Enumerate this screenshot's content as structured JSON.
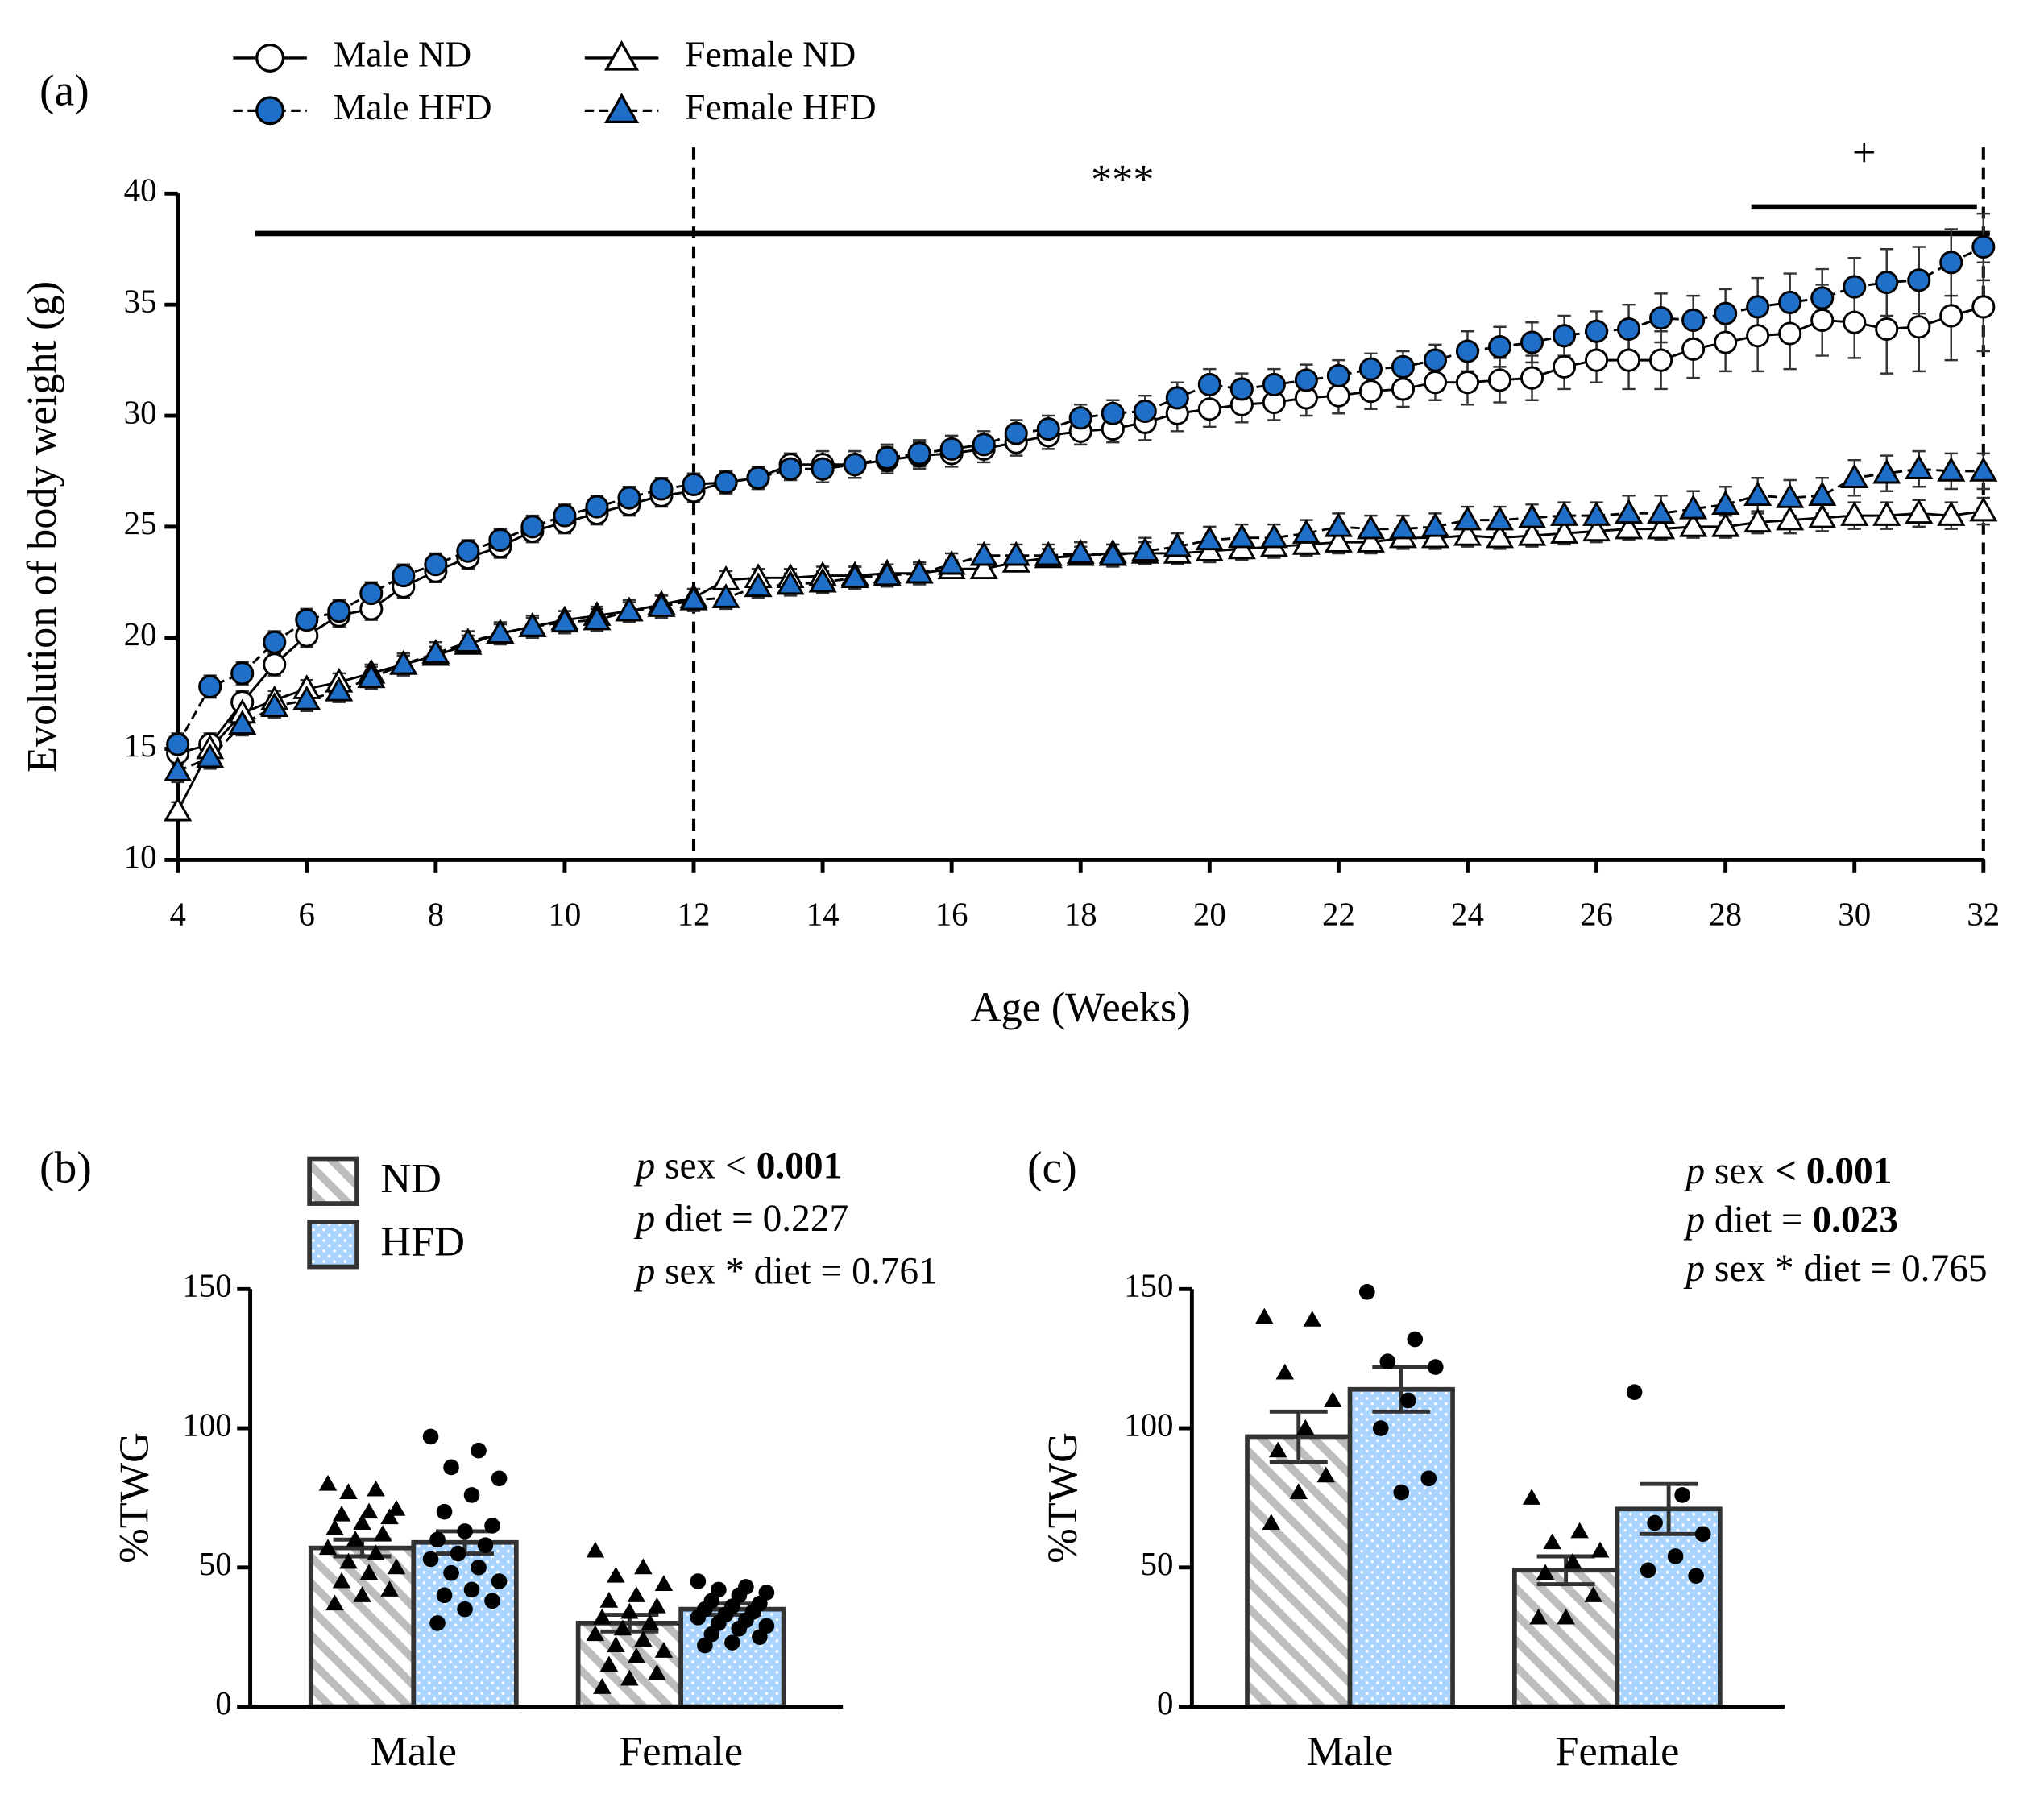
{
  "chart_data": [
    {
      "type": "line",
      "label": "(a)",
      "xlabel": "Age (Weeks)",
      "ylabel": "Evolution of body weight (g)",
      "x": [
        4,
        4.5,
        5,
        5.5,
        6,
        6.5,
        7,
        7.5,
        8,
        8.5,
        9,
        9.5,
        10,
        10.5,
        11,
        11.5,
        12,
        12.5,
        13,
        13.5,
        14,
        14.5,
        15,
        15.5,
        16,
        16.5,
        17,
        17.5,
        18,
        18.5,
        19,
        19.5,
        20,
        20.5,
        21,
        21.5,
        22,
        22.5,
        23,
        23.5,
        24,
        24.5,
        25,
        25.5,
        26,
        26.5,
        27,
        27.5,
        28,
        28.5,
        29,
        29.5,
        30,
        30.5,
        31,
        31.5,
        32
      ],
      "xlim": [
        4,
        32
      ],
      "xticks": [
        4,
        6,
        8,
        10,
        12,
        14,
        16,
        18,
        20,
        22,
        24,
        26,
        28,
        30,
        32
      ],
      "ylim": [
        10,
        40
      ],
      "yticks": [
        10,
        15,
        20,
        25,
        30,
        35,
        40
      ],
      "vlines": [
        12,
        32
      ],
      "sig_bars": [
        {
          "label": "***",
          "x": [
            5.2,
            32.1
          ],
          "y": 38.2
        },
        {
          "label": "+",
          "x": [
            28.4,
            31.9
          ],
          "y": 39.4
        }
      ],
      "series": [
        {
          "name": "Male ND",
          "marker": "circle",
          "color": "#ffffff",
          "line_style": "solid",
          "values": [
            14.8,
            15.2,
            17.1,
            18.8,
            20.1,
            21.0,
            21.3,
            22.3,
            23.0,
            23.6,
            24.1,
            24.8,
            25.2,
            25.6,
            26.0,
            26.4,
            26.6,
            27.0,
            27.2,
            27.8,
            27.8,
            27.8,
            28.0,
            28.2,
            28.3,
            28.5,
            28.8,
            29.1,
            29.3,
            29.4,
            29.7,
            30.1,
            30.3,
            30.5,
            30.6,
            30.8,
            30.9,
            31.1,
            31.2,
            31.5,
            31.5,
            31.6,
            31.7,
            32.2,
            32.5,
            32.5,
            32.5,
            33.0,
            33.3,
            33.6,
            33.7,
            34.3,
            34.2,
            33.9,
            34.0,
            34.5,
            34.9
          ],
          "errors": [
            0.5,
            0.5,
            0.5,
            0.5,
            0.5,
            0.5,
            0.5,
            0.5,
            0.5,
            0.5,
            0.5,
            0.5,
            0.5,
            0.5,
            0.5,
            0.5,
            0.5,
            0.5,
            0.5,
            0.5,
            0.6,
            0.6,
            0.6,
            0.6,
            0.6,
            0.6,
            0.6,
            0.6,
            0.6,
            0.6,
            0.8,
            0.8,
            0.8,
            0.8,
            0.8,
            0.8,
            0.8,
            0.8,
            0.8,
            0.8,
            1.0,
            1.0,
            1.0,
            1.0,
            1.0,
            1.3,
            1.3,
            1.3,
            1.3,
            1.6,
            1.6,
            1.6,
            1.6,
            2.0,
            2.0,
            2.0,
            2.0
          ]
        },
        {
          "name": "Male HFD",
          "marker": "circle",
          "color": "#1f6fc8",
          "line_style": "dashed",
          "values": [
            15.2,
            17.8,
            18.4,
            19.8,
            20.8,
            21.2,
            22.0,
            22.8,
            23.3,
            23.9,
            24.4,
            25.0,
            25.5,
            25.9,
            26.3,
            26.7,
            26.9,
            27.0,
            27.2,
            27.6,
            27.6,
            27.8,
            28.1,
            28.3,
            28.5,
            28.7,
            29.2,
            29.4,
            29.9,
            30.1,
            30.2,
            30.8,
            31.4,
            31.2,
            31.4,
            31.6,
            31.8,
            32.1,
            32.2,
            32.5,
            32.9,
            33.1,
            33.3,
            33.6,
            33.8,
            33.9,
            34.4,
            34.3,
            34.6,
            34.9,
            35.1,
            35.3,
            35.8,
            36.0,
            36.1,
            36.9,
            37.6
          ],
          "errors": [
            0.5,
            0.5,
            0.5,
            0.5,
            0.5,
            0.5,
            0.5,
            0.5,
            0.5,
            0.5,
            0.5,
            0.5,
            0.5,
            0.5,
            0.5,
            0.5,
            0.5,
            0.5,
            0.5,
            0.5,
            0.6,
            0.6,
            0.6,
            0.6,
            0.6,
            0.6,
            0.6,
            0.6,
            0.6,
            0.6,
            0.7,
            0.7,
            0.7,
            0.7,
            0.7,
            0.7,
            0.7,
            0.7,
            0.7,
            0.7,
            0.9,
            0.9,
            0.9,
            0.9,
            0.9,
            1.1,
            1.1,
            1.1,
            1.1,
            1.3,
            1.3,
            1.3,
            1.3,
            1.5,
            1.5,
            1.5,
            1.5
          ]
        },
        {
          "name": "Female ND",
          "marker": "triangle",
          "color": "#ffffff",
          "line_style": "solid",
          "values": [
            12.2,
            15.0,
            16.6,
            17.2,
            17.7,
            18.0,
            18.4,
            18.8,
            19.2,
            19.7,
            20.2,
            20.5,
            20.8,
            21.0,
            21.2,
            21.5,
            21.8,
            22.6,
            22.7,
            22.7,
            22.8,
            22.8,
            22.9,
            22.9,
            23.1,
            23.1,
            23.4,
            23.6,
            23.7,
            23.8,
            23.8,
            23.8,
            23.9,
            24.0,
            24.1,
            24.2,
            24.3,
            24.3,
            24.5,
            24.5,
            24.6,
            24.5,
            24.6,
            24.7,
            24.8,
            24.9,
            24.9,
            25.0,
            25.0,
            25.2,
            25.3,
            25.4,
            25.5,
            25.5,
            25.6,
            25.5,
            25.7
          ],
          "errors": [
            0.4,
            0.4,
            0.4,
            0.4,
            0.4,
            0.4,
            0.4,
            0.4,
            0.4,
            0.4,
            0.4,
            0.4,
            0.4,
            0.4,
            0.4,
            0.4,
            0.4,
            0.4,
            0.4,
            0.4,
            0.4,
            0.4,
            0.4,
            0.4,
            0.4,
            0.4,
            0.4,
            0.4,
            0.4,
            0.4,
            0.5,
            0.5,
            0.5,
            0.5,
            0.5,
            0.5,
            0.5,
            0.5,
            0.5,
            0.5,
            0.5,
            0.5,
            0.5,
            0.5,
            0.5,
            0.5,
            0.5,
            0.5,
            0.5,
            0.5,
            0.6,
            0.6,
            0.6,
            0.6,
            0.6,
            0.6,
            0.6
          ]
        },
        {
          "name": "Female HFD",
          "marker": "triangle",
          "color": "#1f6fc8",
          "line_style": "dashed",
          "values": [
            14.0,
            14.6,
            16.1,
            16.9,
            17.2,
            17.6,
            18.2,
            18.8,
            19.3,
            19.8,
            20.2,
            20.5,
            20.7,
            20.8,
            21.2,
            21.4,
            21.7,
            21.8,
            22.3,
            22.4,
            22.5,
            22.7,
            22.8,
            22.9,
            23.3,
            23.7,
            23.7,
            23.7,
            23.8,
            23.7,
            23.9,
            24.1,
            24.4,
            24.5,
            24.5,
            24.7,
            25.0,
            24.9,
            24.9,
            25.0,
            25.3,
            25.3,
            25.4,
            25.5,
            25.5,
            25.6,
            25.6,
            25.8,
            26.0,
            26.4,
            26.3,
            26.4,
            27.2,
            27.4,
            27.6,
            27.5,
            27.5
          ],
          "errors": [
            0.5,
            0.5,
            0.5,
            0.5,
            0.5,
            0.5,
            0.5,
            0.5,
            0.5,
            0.5,
            0.5,
            0.5,
            0.5,
            0.5,
            0.5,
            0.5,
            0.5,
            0.5,
            0.5,
            0.5,
            0.5,
            0.5,
            0.5,
            0.5,
            0.5,
            0.5,
            0.5,
            0.5,
            0.5,
            0.5,
            0.6,
            0.6,
            0.6,
            0.6,
            0.6,
            0.6,
            0.6,
            0.6,
            0.6,
            0.6,
            0.6,
            0.6,
            0.6,
            0.6,
            0.6,
            0.8,
            0.8,
            0.8,
            0.8,
            0.8,
            0.8,
            0.8,
            0.8,
            0.8,
            0.8,
            0.8,
            0.8
          ]
        }
      ]
    },
    {
      "type": "bar",
      "label": "(b)",
      "ylabel": "%TWG",
      "categories": [
        "Male",
        "Female"
      ],
      "ylim": [
        0,
        150
      ],
      "yticks": [
        0,
        50,
        100,
        150
      ],
      "stats": [
        [
          {
            "text": "p",
            "style": "italic"
          },
          {
            "text": " sex < "
          },
          {
            "text": "0.001",
            "style": "bold"
          }
        ],
        [
          {
            "text": "p",
            "style": "italic"
          },
          {
            "text": " diet = 0.227"
          }
        ],
        [
          {
            "text": "p",
            "style": "italic"
          },
          {
            "text": " sex * diet = 0.761"
          }
        ]
      ],
      "series": [
        {
          "name": "ND",
          "pattern": "hatch",
          "color": "#bdbdbd",
          "marker": "triangle",
          "values": [
            57,
            30
          ],
          "errors": [
            3,
            3
          ],
          "points": [
            [
              80,
              78,
              77,
              71,
              70,
              69,
              68,
              66,
              64,
              62,
              60,
              57,
              55,
              52,
              50,
              48,
              45,
              42,
              40,
              37
            ],
            [
              56,
              50,
              47,
              44,
              40,
              38,
              36,
              34,
              32,
              30,
              28,
              26,
              24,
              22,
              20,
              18,
              15,
              12,
              10,
              7
            ]
          ]
        },
        {
          "name": "HFD",
          "pattern": "dots",
          "color": "#a8d4ff",
          "marker": "circle",
          "values": [
            59,
            35
          ],
          "errors": [
            4,
            2
          ],
          "points": [
            [
              97,
              92,
              86,
              82,
              76,
              70,
              65,
              63,
              60,
              58,
              55,
              53,
              50,
              48,
              45,
              42,
              40,
              38,
              35,
              30
            ],
            [
              45,
              43,
              42,
              41,
              40,
              38,
              37,
              36,
              35,
              34,
              33,
              32,
              31,
              30,
              29,
              28,
              26,
              25,
              23,
              22
            ]
          ]
        }
      ]
    },
    {
      "type": "bar",
      "label": "(c)",
      "ylabel": "%TWG",
      "categories": [
        "Male",
        "Female"
      ],
      "ylim": [
        0,
        150
      ],
      "yticks": [
        0,
        50,
        100,
        150
      ],
      "stats": [
        [
          {
            "text": "p",
            "style": "italic"
          },
          {
            "text": " sex "
          },
          {
            "text": "< 0.001",
            "style": "bold"
          }
        ],
        [
          {
            "text": "p",
            "style": "italic"
          },
          {
            "text": " diet = "
          },
          {
            "text": "0.023",
            "style": "bold"
          }
        ],
        [
          {
            "text": "p",
            "style": "italic"
          },
          {
            "text": " sex * diet = 0.765"
          }
        ]
      ],
      "series": [
        {
          "pattern": "hatch",
          "color": "#bdbdbd",
          "marker": "triangle",
          "values": [
            97,
            49
          ],
          "errors": [
            9,
            5
          ],
          "points": [
            [
              140,
              139,
              120,
              110,
              100,
              92,
              83,
              77,
              66
            ],
            [
              75,
              63,
              59,
              56,
              52,
              48,
              40,
              32,
              32
            ]
          ]
        },
        {
          "pattern": "dots",
          "color": "#a8d4ff",
          "marker": "circle",
          "values": [
            114,
            71
          ],
          "errors": [
            8,
            9
          ],
          "points": [
            [
              149,
              132,
              124,
              122,
              110,
              100,
              82,
              77
            ],
            [
              113,
              76,
              66,
              62,
              54,
              49,
              47
            ]
          ]
        }
      ]
    }
  ]
}
